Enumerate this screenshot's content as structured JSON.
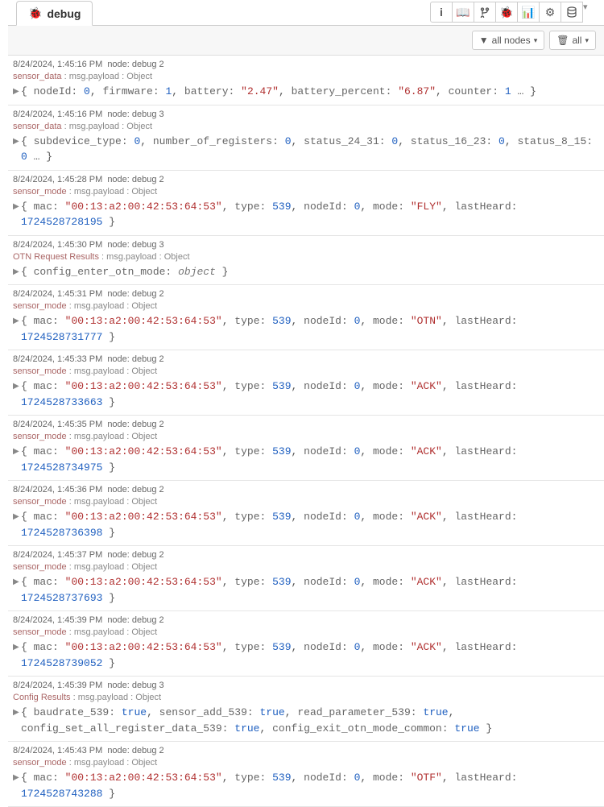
{
  "tab": {
    "title": "debug"
  },
  "filter": {
    "all_nodes": "all nodes",
    "clear_all": "all"
  },
  "entries": [
    {
      "ts": "8/24/2024, 1:45:16 PM",
      "node": "node: debug 2",
      "topic": "sensor_data",
      "path": "msg.payload",
      "type": "Object",
      "fields": [
        {
          "k": "nodeId",
          "v": "0",
          "t": "n"
        },
        {
          "k": "firmware",
          "v": "1",
          "t": "n"
        },
        {
          "k": "battery",
          "v": "\"2.47\"",
          "t": "s"
        },
        {
          "k": "battery_percent",
          "v": "\"6.87\"",
          "t": "s"
        },
        {
          "k": "counter",
          "v": "1",
          "t": "n"
        }
      ],
      "more": true
    },
    {
      "ts": "8/24/2024, 1:45:16 PM",
      "node": "node: debug 3",
      "topic": "sensor_data",
      "path": "msg.payload",
      "type": "Object",
      "fields": [
        {
          "k": "subdevice_type",
          "v": "0",
          "t": "n"
        },
        {
          "k": "number_of_registers",
          "v": "0",
          "t": "n"
        },
        {
          "k": "status_24_31",
          "v": "0",
          "t": "n"
        },
        {
          "k": "status_16_23",
          "v": "0",
          "t": "n"
        },
        {
          "k": "status_8_15",
          "v": "0",
          "t": "n"
        }
      ],
      "more": true
    },
    {
      "ts": "8/24/2024, 1:45:28 PM",
      "node": "node: debug 2",
      "topic": "sensor_mode",
      "path": "msg.payload",
      "type": "Object",
      "fields": [
        {
          "k": "mac",
          "v": "\"00:13:a2:00:42:53:64:53\"",
          "t": "s"
        },
        {
          "k": "type",
          "v": "539",
          "t": "n"
        },
        {
          "k": "nodeId",
          "v": "0",
          "t": "n"
        },
        {
          "k": "mode",
          "v": "\"FLY\"",
          "t": "s"
        },
        {
          "k": "lastHeard",
          "v": "1724528728195",
          "t": "n"
        }
      ],
      "more": false
    },
    {
      "ts": "8/24/2024, 1:45:30 PM",
      "node": "node: debug 3",
      "topic": "OTN Request Results",
      "path": "msg.payload",
      "type": "Object",
      "fields": [
        {
          "k": "config_enter_otn_mode",
          "v": "object",
          "t": "i"
        }
      ],
      "more": false
    },
    {
      "ts": "8/24/2024, 1:45:31 PM",
      "node": "node: debug 2",
      "topic": "sensor_mode",
      "path": "msg.payload",
      "type": "Object",
      "fields": [
        {
          "k": "mac",
          "v": "\"00:13:a2:00:42:53:64:53\"",
          "t": "s"
        },
        {
          "k": "type",
          "v": "539",
          "t": "n"
        },
        {
          "k": "nodeId",
          "v": "0",
          "t": "n"
        },
        {
          "k": "mode",
          "v": "\"OTN\"",
          "t": "s"
        },
        {
          "k": "lastHeard",
          "v": "1724528731777",
          "t": "n"
        }
      ],
      "more": false
    },
    {
      "ts": "8/24/2024, 1:45:33 PM",
      "node": "node: debug 2",
      "topic": "sensor_mode",
      "path": "msg.payload",
      "type": "Object",
      "fields": [
        {
          "k": "mac",
          "v": "\"00:13:a2:00:42:53:64:53\"",
          "t": "s"
        },
        {
          "k": "type",
          "v": "539",
          "t": "n"
        },
        {
          "k": "nodeId",
          "v": "0",
          "t": "n"
        },
        {
          "k": "mode",
          "v": "\"ACK\"",
          "t": "s"
        },
        {
          "k": "lastHeard",
          "v": "1724528733663",
          "t": "n"
        }
      ],
      "more": false
    },
    {
      "ts": "8/24/2024, 1:45:35 PM",
      "node": "node: debug 2",
      "topic": "sensor_mode",
      "path": "msg.payload",
      "type": "Object",
      "fields": [
        {
          "k": "mac",
          "v": "\"00:13:a2:00:42:53:64:53\"",
          "t": "s"
        },
        {
          "k": "type",
          "v": "539",
          "t": "n"
        },
        {
          "k": "nodeId",
          "v": "0",
          "t": "n"
        },
        {
          "k": "mode",
          "v": "\"ACK\"",
          "t": "s"
        },
        {
          "k": "lastHeard",
          "v": "1724528734975",
          "t": "n"
        }
      ],
      "more": false
    },
    {
      "ts": "8/24/2024, 1:45:36 PM",
      "node": "node: debug 2",
      "topic": "sensor_mode",
      "path": "msg.payload",
      "type": "Object",
      "fields": [
        {
          "k": "mac",
          "v": "\"00:13:a2:00:42:53:64:53\"",
          "t": "s"
        },
        {
          "k": "type",
          "v": "539",
          "t": "n"
        },
        {
          "k": "nodeId",
          "v": "0",
          "t": "n"
        },
        {
          "k": "mode",
          "v": "\"ACK\"",
          "t": "s"
        },
        {
          "k": "lastHeard",
          "v": "1724528736398",
          "t": "n"
        }
      ],
      "more": false
    },
    {
      "ts": "8/24/2024, 1:45:37 PM",
      "node": "node: debug 2",
      "topic": "sensor_mode",
      "path": "msg.payload",
      "type": "Object",
      "fields": [
        {
          "k": "mac",
          "v": "\"00:13:a2:00:42:53:64:53\"",
          "t": "s"
        },
        {
          "k": "type",
          "v": "539",
          "t": "n"
        },
        {
          "k": "nodeId",
          "v": "0",
          "t": "n"
        },
        {
          "k": "mode",
          "v": "\"ACK\"",
          "t": "s"
        },
        {
          "k": "lastHeard",
          "v": "1724528737693",
          "t": "n"
        }
      ],
      "more": false
    },
    {
      "ts": "8/24/2024, 1:45:39 PM",
      "node": "node: debug 2",
      "topic": "sensor_mode",
      "path": "msg.payload",
      "type": "Object",
      "fields": [
        {
          "k": "mac",
          "v": "\"00:13:a2:00:42:53:64:53\"",
          "t": "s"
        },
        {
          "k": "type",
          "v": "539",
          "t": "n"
        },
        {
          "k": "nodeId",
          "v": "0",
          "t": "n"
        },
        {
          "k": "mode",
          "v": "\"ACK\"",
          "t": "s"
        },
        {
          "k": "lastHeard",
          "v": "1724528739052",
          "t": "n"
        }
      ],
      "more": false
    },
    {
      "ts": "8/24/2024, 1:45:39 PM",
      "node": "node: debug 3",
      "topic": "Config Results",
      "path": "msg.payload",
      "type": "Object",
      "fields": [
        {
          "k": "baudrate_539",
          "v": "true",
          "t": "n"
        },
        {
          "k": "sensor_add_539",
          "v": "true",
          "t": "n"
        },
        {
          "k": "read_parameter_539",
          "v": "true",
          "t": "n"
        },
        {
          "k": "config_set_all_register_data_539",
          "v": "true",
          "t": "n"
        },
        {
          "k": "config_exit_otn_mode_common",
          "v": "true",
          "t": "n"
        }
      ],
      "more": false
    },
    {
      "ts": "8/24/2024, 1:45:43 PM",
      "node": "node: debug 2",
      "topic": "sensor_mode",
      "path": "msg.payload",
      "type": "Object",
      "fields": [
        {
          "k": "mac",
          "v": "\"00:13:a2:00:42:53:64:53\"",
          "t": "s"
        },
        {
          "k": "type",
          "v": "539",
          "t": "n"
        },
        {
          "k": "nodeId",
          "v": "0",
          "t": "n"
        },
        {
          "k": "mode",
          "v": "\"OTF\"",
          "t": "s"
        },
        {
          "k": "lastHeard",
          "v": "1724528743288",
          "t": "n"
        }
      ],
      "more": false
    }
  ]
}
